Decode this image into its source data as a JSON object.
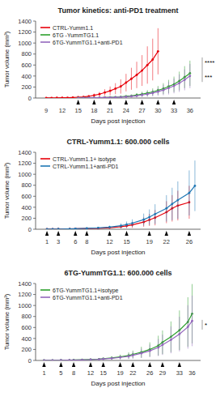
{
  "chart_data": [
    {
      "type": "line",
      "title": "Tumor kinetics: anti-PD1 treatment",
      "xlabel": "Days post injection",
      "ylabel": "Tumor volume (mm³)",
      "xlim": [
        7,
        38
      ],
      "xticks": [
        9,
        12,
        15,
        18,
        21,
        24,
        27,
        30,
        33,
        36
      ],
      "ylim": [
        0,
        1400
      ],
      "yticks": [
        0,
        200,
        400,
        600,
        800,
        1000,
        1200,
        1400
      ],
      "grid": false,
      "legend": "upper left",
      "marker": "circle",
      "arrows": [
        15,
        18,
        21,
        24,
        27,
        30,
        33
      ],
      "annotations": [
        {
          "text": "****",
          "y": 650
        },
        {
          "text": "***",
          "y": 380
        }
      ],
      "series": [
        {
          "name": "CTRL-Yumm1.1",
          "color": "#e8000b",
          "x": [
            9,
            10,
            11,
            12,
            13,
            14,
            15,
            16,
            17,
            18,
            19,
            20,
            21,
            22,
            23,
            24,
            25,
            26,
            27,
            28,
            29,
            30
          ],
          "values": [
            2,
            3,
            4,
            5,
            7,
            10,
            15,
            20,
            30,
            50,
            70,
            100,
            130,
            170,
            210,
            280,
            350,
            420,
            500,
            600,
            700,
            850
          ],
          "errors": [
            1,
            2,
            3,
            4,
            5,
            8,
            10,
            15,
            20,
            30,
            40,
            60,
            80,
            100,
            130,
            160,
            200,
            240,
            280,
            340,
            380,
            420
          ]
        },
        {
          "name": "6TG -YummTG1.1",
          "color": "#2ca02c",
          "x": [
            15,
            16,
            17,
            18,
            19,
            20,
            21,
            22,
            23,
            24,
            25,
            26,
            27,
            28,
            29,
            30,
            31,
            32,
            33,
            34,
            35,
            36
          ],
          "values": [
            2,
            3,
            4,
            5,
            7,
            10,
            12,
            15,
            20,
            30,
            40,
            55,
            70,
            90,
            110,
            140,
            170,
            210,
            250,
            310,
            380,
            450
          ],
          "errors": [
            1,
            2,
            3,
            4,
            5,
            8,
            10,
            12,
            15,
            20,
            25,
            35,
            45,
            55,
            65,
            80,
            100,
            120,
            140,
            170,
            200,
            230
          ]
        },
        {
          "name": "6TG-YummTG1.1+anti-PD1",
          "color": "#9467bd",
          "x": [
            15,
            16,
            17,
            18,
            19,
            20,
            21,
            22,
            23,
            24,
            25,
            26,
            27,
            28,
            29,
            30,
            31,
            32,
            33,
            34,
            35,
            36
          ],
          "values": [
            2,
            3,
            4,
            5,
            6,
            8,
            10,
            12,
            16,
            22,
            30,
            40,
            55,
            70,
            90,
            115,
            145,
            180,
            220,
            270,
            330,
            400
          ],
          "errors": [
            1,
            2,
            3,
            4,
            5,
            6,
            8,
            10,
            12,
            15,
            20,
            28,
            38,
            48,
            60,
            75,
            95,
            115,
            135,
            160,
            190,
            220
          ]
        }
      ]
    },
    {
      "type": "line",
      "title": "CTRL-Yumm1.1: 600.000 cells",
      "xlabel": "Days post injection",
      "ylabel": "Tumor volume (mm³)",
      "xlim": [
        -1,
        28
      ],
      "xticks": [
        1,
        3,
        6,
        8,
        12,
        15,
        19,
        22,
        26
      ],
      "ylim": [
        0,
        1400
      ],
      "yticks": [
        0,
        200,
        400,
        600,
        800,
        1000,
        1200,
        1400
      ],
      "grid": false,
      "legend": "upper left",
      "marker": "circle",
      "arrows": [
        1,
        3,
        6,
        8,
        12,
        15,
        19,
        22,
        26
      ],
      "series": [
        {
          "name": "CTRL-Yumm1.1+ isotype",
          "color": "#e8000b",
          "x": [
            1,
            2,
            3,
            5,
            6,
            8,
            10,
            12,
            14,
            15,
            16,
            18,
            19,
            20,
            22,
            23,
            24,
            26
          ],
          "values": [
            2,
            3,
            4,
            6,
            8,
            12,
            18,
            28,
            45,
            60,
            80,
            130,
            170,
            210,
            310,
            380,
            430,
            490
          ],
          "errors": [
            1,
            2,
            3,
            4,
            5,
            8,
            12,
            18,
            28,
            40,
            55,
            85,
            110,
            140,
            200,
            240,
            270,
            300
          ]
        },
        {
          "name": "CTRL-Yumm1.1+anti-PD1",
          "color": "#1f77b4",
          "x": [
            1,
            2,
            3,
            5,
            6,
            8,
            10,
            12,
            14,
            15,
            16,
            18,
            19,
            20,
            22,
            23,
            24,
            26,
            27
          ],
          "values": [
            2,
            3,
            4,
            7,
            10,
            16,
            25,
            40,
            65,
            85,
            110,
            175,
            220,
            275,
            380,
            460,
            530,
            660,
            790
          ],
          "errors": [
            1,
            2,
            3,
            5,
            7,
            10,
            16,
            25,
            42,
            55,
            70,
            110,
            140,
            180,
            240,
            295,
            340,
            410,
            460
          ]
        }
      ]
    },
    {
      "type": "line",
      "title": "6TG-YummTG1.1: 600.000 cells",
      "xlabel": "Days post injection",
      "ylabel": "Tumor volume (mm³)",
      "xlim": [
        -1,
        38
      ],
      "xticks": [
        1,
        5,
        8,
        12,
        15,
        19,
        22,
        26,
        29,
        33,
        36
      ],
      "ylim": [
        0,
        1400
      ],
      "yticks": [
        0,
        200,
        400,
        600,
        800,
        1000,
        1200,
        1400
      ],
      "grid": false,
      "legend": "upper left",
      "marker": "circle",
      "arrows": [
        1,
        5,
        8,
        12,
        15,
        19,
        22,
        26,
        29,
        33
      ],
      "annotations": [
        {
          "text": "*",
          "y": 650
        }
      ],
      "series": [
        {
          "name": "6TG-YummTG1.1+isotype",
          "color": "#2ca02c",
          "x": [
            1,
            3,
            5,
            7,
            8,
            10,
            12,
            14,
            15,
            17,
            19,
            21,
            22,
            24,
            26,
            28,
            29,
            31,
            33,
            35,
            36
          ],
          "values": [
            2,
            3,
            4,
            6,
            8,
            12,
            18,
            25,
            32,
            46,
            65,
            90,
            110,
            150,
            200,
            270,
            330,
            430,
            550,
            700,
            850
          ],
          "errors": [
            1,
            2,
            3,
            4,
            5,
            8,
            12,
            16,
            20,
            30,
            42,
            58,
            70,
            100,
            130,
            180,
            215,
            280,
            360,
            450,
            540
          ]
        },
        {
          "name": "6TG-YummTG1.1+anti-PD1",
          "color": "#9467bd",
          "x": [
            1,
            3,
            5,
            7,
            8,
            10,
            12,
            14,
            15,
            17,
            19,
            21,
            22,
            24,
            26,
            28,
            29,
            31,
            33,
            35,
            36
          ],
          "values": [
            2,
            3,
            4,
            5,
            7,
            10,
            15,
            21,
            27,
            38,
            55,
            76,
            95,
            130,
            175,
            235,
            285,
            375,
            480,
            610,
            720
          ],
          "errors": [
            1,
            2,
            3,
            4,
            5,
            7,
            10,
            14,
            18,
            25,
            36,
            50,
            62,
            85,
            115,
            155,
            185,
            245,
            315,
            395,
            460
          ]
        }
      ]
    }
  ]
}
